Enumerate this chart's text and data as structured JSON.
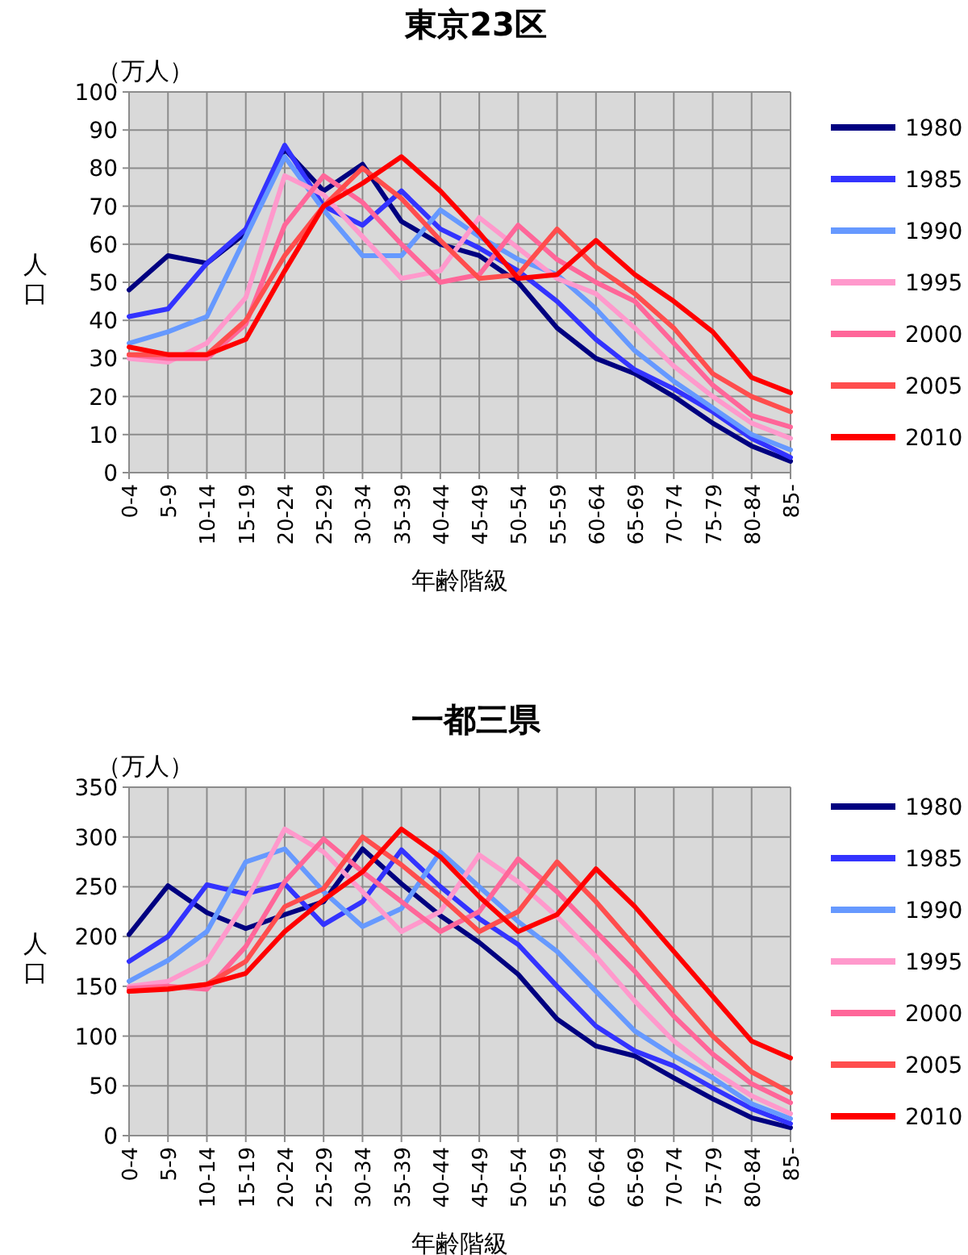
{
  "chart_data": [
    {
      "type": "line",
      "title": "東京23区",
      "ylabel": "人口",
      "xlabel": "年齢階級",
      "annotations": [
        "（万人）"
      ],
      "grid": true,
      "legend": "right",
      "marker": "none",
      "ylim": [
        0,
        100
      ],
      "yticks": [
        0,
        10,
        20,
        30,
        40,
        50,
        60,
        70,
        80,
        90,
        100
      ],
      "categories": [
        "0-4",
        "5-9",
        "10-14",
        "15-19",
        "20-24",
        "25-29",
        "30-34",
        "35-39",
        "40-44",
        "45-49",
        "50-54",
        "55-59",
        "60-64",
        "65-69",
        "70-74",
        "75-79",
        "80-84",
        "85-"
      ],
      "series": [
        {
          "name": "1980",
          "color": "#000080",
          "values": [
            48,
            57,
            55,
            63,
            85,
            74,
            81,
            66,
            60,
            57,
            50,
            38,
            30,
            26,
            20,
            13,
            7,
            3
          ]
        },
        {
          "name": "1985",
          "color": "#3333ff",
          "values": [
            41,
            43,
            55,
            64,
            86,
            70,
            65,
            74,
            64,
            59,
            53,
            45,
            35,
            27,
            22,
            16,
            9,
            4
          ]
        },
        {
          "name": "1990",
          "color": "#6699ff",
          "values": [
            34,
            37,
            41,
            62,
            83,
            69,
            57,
            57,
            69,
            62,
            56,
            52,
            43,
            32,
            24,
            17,
            10,
            6
          ]
        },
        {
          "name": "1995",
          "color": "#ff99cc",
          "values": [
            30,
            29,
            34,
            46,
            78,
            73,
            62,
            51,
            53,
            67,
            59,
            51,
            47,
            38,
            28,
            20,
            13,
            9
          ]
        },
        {
          "name": "2000",
          "color": "#ff6699",
          "values": [
            31,
            30,
            30,
            39,
            65,
            78,
            71,
            60,
            50,
            52,
            65,
            56,
            50,
            45,
            34,
            23,
            15,
            12
          ]
        },
        {
          "name": "2005",
          "color": "#ff4d4d",
          "values": [
            31,
            31,
            31,
            40,
            57,
            70,
            80,
            72,
            61,
            51,
            52,
            64,
            54,
            47,
            38,
            26,
            20,
            16
          ]
        },
        {
          "name": "2010",
          "color": "#ff0000",
          "values": [
            33,
            31,
            31,
            35,
            53,
            70,
            76,
            83,
            74,
            63,
            51,
            52,
            61,
            52,
            45,
            37,
            25,
            21
          ]
        }
      ]
    },
    {
      "type": "line",
      "title": "一都三県",
      "ylabel": "人口",
      "xlabel": "年齢階級",
      "annotations": [
        "（万人）"
      ],
      "grid": true,
      "legend": "right",
      "marker": "none",
      "ylim": [
        0,
        350
      ],
      "yticks": [
        0,
        50,
        100,
        150,
        200,
        250,
        300,
        350
      ],
      "categories": [
        "0-4",
        "5-9",
        "10-14",
        "15-19",
        "20-24",
        "25-29",
        "30-34",
        "35-39",
        "40-44",
        "45-49",
        "50-54",
        "55-59",
        "60-64",
        "65-69",
        "70-74",
        "75-79",
        "80-84",
        "85-"
      ],
      "series": [
        {
          "name": "1980",
          "color": "#000080",
          "values": [
            202,
            251,
            224,
            208,
            222,
            235,
            288,
            253,
            221,
            194,
            162,
            117,
            90,
            80,
            58,
            37,
            18,
            8
          ]
        },
        {
          "name": "1985",
          "color": "#3333ff",
          "values": [
            175,
            200,
            252,
            243,
            253,
            212,
            235,
            287,
            250,
            218,
            192,
            150,
            110,
            85,
            70,
            48,
            27,
            12
          ]
        },
        {
          "name": "1990",
          "color": "#6699ff",
          "values": [
            155,
            176,
            205,
            275,
            288,
            245,
            210,
            228,
            285,
            250,
            215,
            185,
            145,
            105,
            80,
            58,
            32,
            17
          ]
        },
        {
          "name": "1995",
          "color": "#ff99cc",
          "values": [
            150,
            155,
            175,
            235,
            308,
            285,
            245,
            205,
            225,
            282,
            255,
            220,
            180,
            135,
            95,
            65,
            40,
            22
          ]
        },
        {
          "name": "2000",
          "color": "#ff6699",
          "values": [
            148,
            150,
            147,
            190,
            255,
            298,
            265,
            235,
            205,
            225,
            278,
            245,
            205,
            165,
            120,
            82,
            52,
            33
          ]
        },
        {
          "name": "2005",
          "color": "#ff4d4d",
          "values": [
            145,
            148,
            152,
            175,
            230,
            248,
            300,
            272,
            240,
            205,
            225,
            275,
            235,
            190,
            145,
            100,
            64,
            43
          ]
        },
        {
          "name": "2010",
          "color": "#ff0000",
          "values": [
            145,
            147,
            152,
            163,
            205,
            237,
            265,
            308,
            280,
            240,
            205,
            222,
            268,
            230,
            185,
            140,
            95,
            78
          ]
        }
      ]
    }
  ]
}
